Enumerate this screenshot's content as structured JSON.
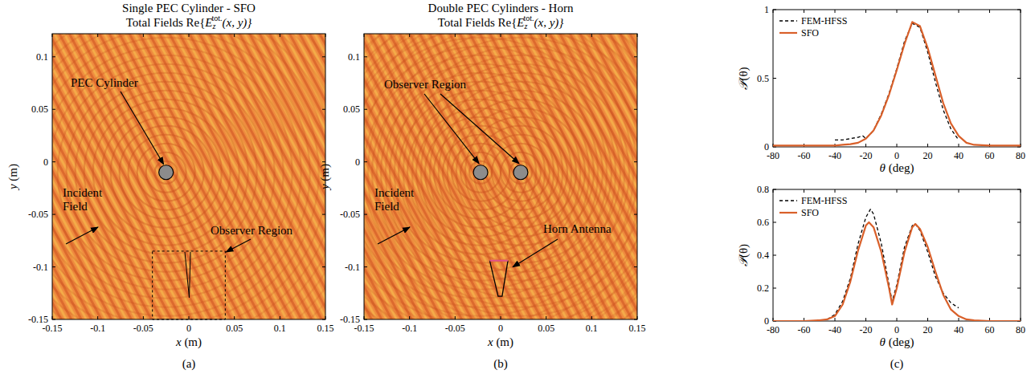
{
  "chart_data": [
    {
      "type": "field_map",
      "title": "Single PEC Cylinder - SFO",
      "subtitle": {
        "prefix": "Total Fields Re{",
        "base": "E",
        "sub": "z",
        "sup": "tot.",
        "suffix": "(x, y)}"
      },
      "x_label": "x (m)",
      "y_label": "y (m)",
      "label": "(a)",
      "xlim": [
        -0.15,
        0.15
      ],
      "ylim": [
        -0.15,
        0.122
      ],
      "xticks": [
        -0.15,
        -0.1,
        -0.05,
        0,
        0.05,
        0.1,
        0.15
      ],
      "yticks": [
        -0.15,
        -0.1,
        -0.05,
        0,
        0.05,
        0.1
      ],
      "cylinders": {
        "x": [
          -0.025
        ],
        "y": [
          -0.01
        ]
      },
      "annotations": [
        "PEC Cylinder",
        "Incident Field",
        "Observer Region"
      ]
    },
    {
      "type": "field_map",
      "title": "Double PEC Cylinders - Horn",
      "subtitle": {
        "prefix": "Total Fields Re{",
        "base": "E",
        "sub": "z",
        "sup": "tot.",
        "suffix": "(x, y)}"
      },
      "x_label": "x (m)",
      "y_label": "y (m)",
      "label": "(b)",
      "xlim": [
        -0.15,
        0.15
      ],
      "ylim": [
        -0.15,
        0.122
      ],
      "xticks": [
        -0.15,
        -0.1,
        -0.05,
        0,
        0.05,
        0.1,
        0.15
      ],
      "yticks": [
        -0.15,
        -0.1,
        -0.05,
        0,
        0.05,
        0.1
      ],
      "cylinders": {
        "x": [
          -0.022,
          0.022
        ],
        "y": [
          -0.01,
          -0.01
        ]
      },
      "annotations": [
        "Observer Region",
        "Incident Field",
        "Horn Antenna"
      ]
    },
    {
      "type": "line",
      "x_label": "θ (deg)",
      "y_label": "𝒫(θ)",
      "xlim": [
        -80,
        80
      ],
      "ylim": [
        0,
        1
      ],
      "xticks": [
        -80,
        -60,
        -40,
        -20,
        0,
        20,
        40,
        60,
        80
      ],
      "yticks": [
        0,
        0.5,
        1
      ],
      "legend": "upper left",
      "series": [
        {
          "name": "FEM-HFSS",
          "color": "#000000",
          "line_style": "dashed",
          "x": [
            -40,
            -35,
            -30,
            -25,
            -22,
            -20,
            -15,
            -10,
            -5,
            0,
            5,
            10,
            15,
            20,
            25,
            30,
            35,
            40
          ],
          "values": [
            0.05,
            0.05,
            0.06,
            0.07,
            0.08,
            0.06,
            0.12,
            0.24,
            0.39,
            0.57,
            0.77,
            0.9,
            0.87,
            0.69,
            0.47,
            0.27,
            0.13,
            0.05
          ]
        },
        {
          "name": "SFO",
          "color": "#d9602a",
          "line_style": "solid",
          "x": [
            -80,
            -70,
            -60,
            -50,
            -45,
            -40,
            -35,
            -30,
            -25,
            -20,
            -15,
            -10,
            -5,
            0,
            5,
            10,
            15,
            20,
            25,
            30,
            35,
            40,
            45,
            50,
            60,
            70,
            80
          ],
          "values": [
            0.01,
            0.01,
            0.01,
            0.01,
            0.01,
            0.01,
            0.015,
            0.02,
            0.03,
            0.06,
            0.12,
            0.23,
            0.38,
            0.56,
            0.75,
            0.91,
            0.88,
            0.72,
            0.52,
            0.32,
            0.17,
            0.08,
            0.03,
            0.015,
            0.01,
            0.01,
            0.01
          ]
        }
      ]
    },
    {
      "type": "line",
      "x_label": "θ (deg)",
      "y_label": "𝒫(θ)",
      "label": "(c)",
      "xlim": [
        -80,
        80
      ],
      "ylim": [
        0,
        0.8
      ],
      "xticks": [
        -80,
        -60,
        -40,
        -20,
        0,
        20,
        40,
        60,
        80
      ],
      "yticks": [
        0,
        0.2,
        0.4,
        0.6,
        0.8
      ],
      "legend": "upper left",
      "series": [
        {
          "name": "FEM-HFSS",
          "color": "#000000",
          "line_style": "dashed",
          "x": [
            -45,
            -40,
            -35,
            -30,
            -25,
            -20,
            -17,
            -15,
            -10,
            -5,
            -3,
            0,
            5,
            10,
            12,
            15,
            20,
            25,
            30,
            35,
            40
          ],
          "values": [
            0.01,
            0.04,
            0.12,
            0.26,
            0.47,
            0.63,
            0.68,
            0.65,
            0.47,
            0.22,
            0.12,
            0.22,
            0.45,
            0.58,
            0.59,
            0.55,
            0.42,
            0.27,
            0.17,
            0.11,
            0.08
          ]
        },
        {
          "name": "SFO",
          "color": "#d9602a",
          "line_style": "solid",
          "x": [
            -80,
            -70,
            -60,
            -50,
            -45,
            -40,
            -35,
            -30,
            -25,
            -20,
            -18,
            -15,
            -10,
            -5,
            -3,
            0,
            5,
            10,
            12,
            15,
            20,
            25,
            30,
            35,
            40,
            45,
            50,
            60,
            70,
            80
          ],
          "values": [
            0,
            0,
            0,
            0.005,
            0.01,
            0.03,
            0.1,
            0.24,
            0.43,
            0.58,
            0.6,
            0.57,
            0.42,
            0.2,
            0.1,
            0.2,
            0.42,
            0.57,
            0.59,
            0.56,
            0.45,
            0.3,
            0.16,
            0.07,
            0.03,
            0.01,
            0.005,
            0,
            0,
            0
          ]
        }
      ]
    }
  ]
}
